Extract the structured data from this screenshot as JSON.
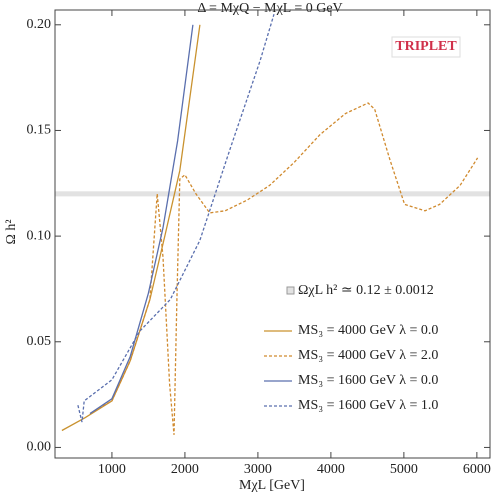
{
  "chart_data": {
    "type": "line",
    "title": "Δ = MχQ − MχL = 0 GeV",
    "x_label": "MχL [GeV]",
    "y_label": "Ω h²",
    "annotation": "TRIPLET",
    "annotation_color": "#d0304a",
    "band": {
      "name": "ΩχL h² ≃ 0.12 ± 0.0012",
      "center": 0.12,
      "halfwidth": 0.0012,
      "color": "#e2e2e2"
    },
    "xlim": [
      220,
      6180
    ],
    "ylim": [
      -0.005,
      0.207
    ],
    "xticks": [
      1000,
      2000,
      3000,
      4000,
      5000,
      6000
    ],
    "yticks": [
      {
        "value": 0,
        "label": "0.00"
      },
      {
        "value": 0.05,
        "label": "0.05"
      },
      {
        "value": 0.1,
        "label": "0.10"
      },
      {
        "value": 0.15,
        "label": "0.15"
      },
      {
        "value": 0.2,
        "label": "0.20"
      }
    ],
    "series": [
      {
        "name": "MS₃ = 4000 GeV   λ = 0.0",
        "color": "#c9922f",
        "dash": false,
        "x": [
          315,
          630,
          1000,
          1250,
          1520,
          1725,
          1930,
          2205
        ],
        "values": [
          0.008,
          0.014,
          0.022,
          0.041,
          0.07,
          0.1,
          0.131,
          0.2
        ]
      },
      {
        "name": "MS₃ = 4000 GeV   λ = 2.0",
        "color": "#d08a2e",
        "dash": true,
        "x": [
          700,
          1000,
          1250,
          1520,
          1620,
          1700,
          1790,
          1850,
          1890,
          1930,
          2000,
          2150,
          2340,
          2550,
          2850,
          3160,
          3500,
          3850,
          4200,
          4510,
          4600,
          4810,
          5010,
          5290,
          5490,
          5770,
          6010
        ],
        "values": [
          0.016,
          0.022,
          0.041,
          0.07,
          0.12,
          0.09,
          0.03,
          0.006,
          0.07,
          0.127,
          0.129,
          0.12,
          0.111,
          0.112,
          0.117,
          0.124,
          0.135,
          0.148,
          0.158,
          0.163,
          0.16,
          0.136,
          0.115,
          0.112,
          0.115,
          0.124,
          0.137
        ]
      },
      {
        "name": "MS₃ = 1600 GeV   λ = 0.0",
        "color": "#5a6fae",
        "dash": false,
        "x": [
          700,
          1000,
          1250,
          1500,
          1700,
          1900,
          2110
        ],
        "values": [
          0.016,
          0.023,
          0.043,
          0.073,
          0.104,
          0.145,
          0.2
        ]
      },
      {
        "name": "MS₃ = 1600 GeV   λ = 1.0",
        "color": "#5a6fae",
        "dash": true,
        "x": [
          534,
          590,
          620,
          1000,
          1380,
          1800,
          2205,
          2616,
          3030,
          3220
        ],
        "values": [
          0.02,
          0.012,
          0.022,
          0.032,
          0.055,
          0.07,
          0.098,
          0.141,
          0.183,
          0.205
        ]
      }
    ]
  }
}
